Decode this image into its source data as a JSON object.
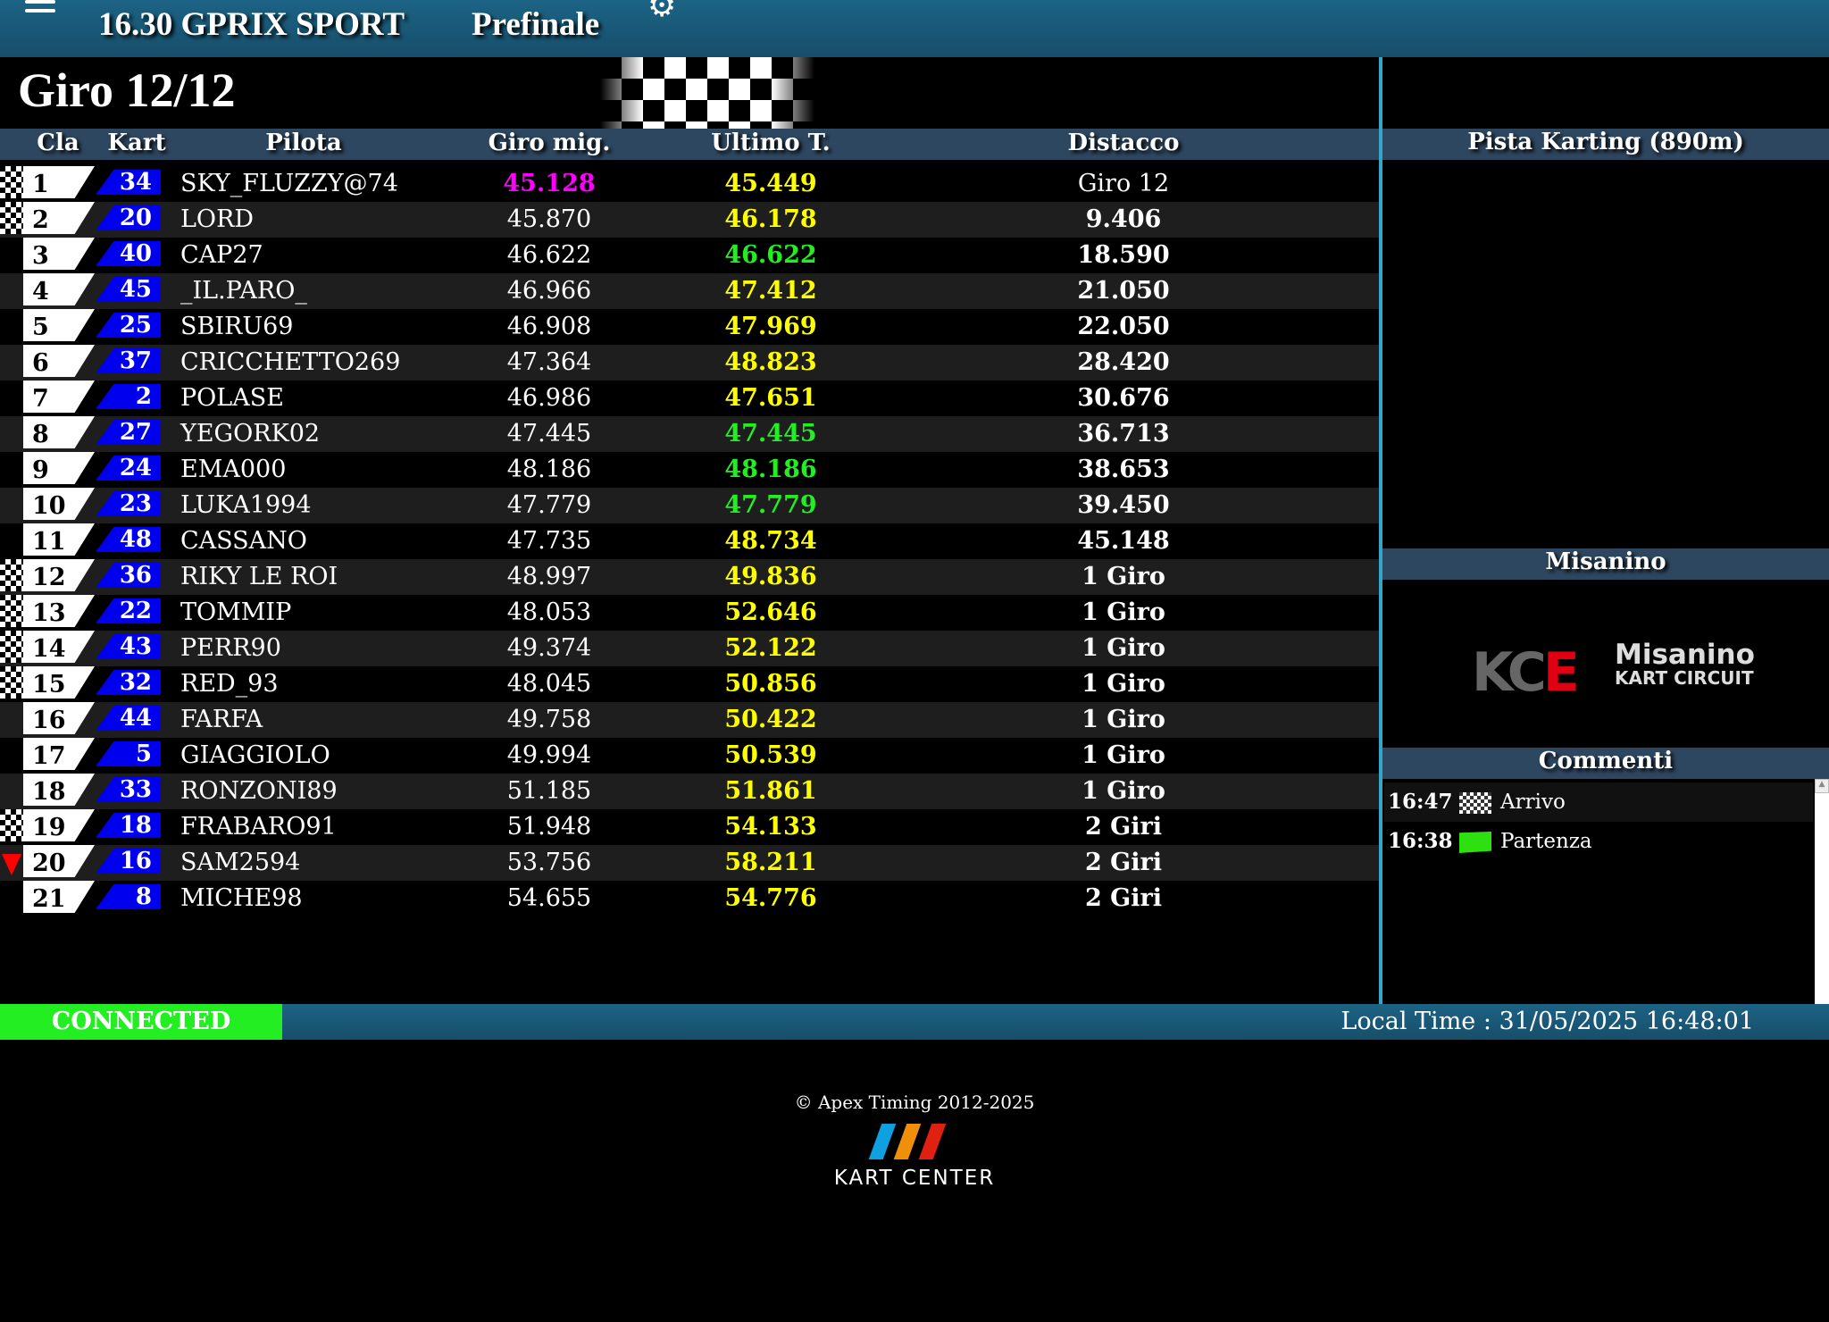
{
  "header": {
    "title": "16.30 GPRIX SPORT",
    "session": "Prefinale"
  },
  "lap": "Giro 12/12",
  "columns": {
    "cla": "Cla",
    "kart": "Kart",
    "pilota": "Pilota",
    "best": "Giro mig.",
    "last": "Ultimo T.",
    "gap": "Distacco"
  },
  "colors": {
    "magenta": "#ff00ff",
    "yellow": "#ffff00",
    "green": "#22ee22",
    "white": "#ffffff",
    "connected": "#22ee22",
    "kart_blue": "#0000ee"
  },
  "rows": [
    {
      "pos": "1",
      "kart": "34",
      "name": "SKY_FLUZZY@74",
      "best": "45.128",
      "last": "45.449",
      "gap": "Giro 12",
      "best_color": "magenta",
      "last_color": "yellow",
      "marker": "checkered",
      "gap_bold": false
    },
    {
      "pos": "2",
      "kart": "20",
      "name": "LORD",
      "best": "45.870",
      "last": "46.178",
      "gap": "9.406",
      "best_color": "white",
      "last_color": "yellow",
      "marker": "checkered"
    },
    {
      "pos": "3",
      "kart": "40",
      "name": "CAP27",
      "best": "46.622",
      "last": "46.622",
      "gap": "18.590",
      "best_color": "white",
      "last_color": "green",
      "marker": ""
    },
    {
      "pos": "4",
      "kart": "45",
      "name": "_IL.PARO_",
      "best": "46.966",
      "last": "47.412",
      "gap": "21.050",
      "best_color": "white",
      "last_color": "yellow",
      "marker": ""
    },
    {
      "pos": "5",
      "kart": "25",
      "name": "SBIRU69",
      "best": "46.908",
      "last": "47.969",
      "gap": "22.050",
      "best_color": "white",
      "last_color": "yellow",
      "marker": ""
    },
    {
      "pos": "6",
      "kart": "37",
      "name": "CRICCHETTO269",
      "best": "47.364",
      "last": "48.823",
      "gap": "28.420",
      "best_color": "white",
      "last_color": "yellow",
      "marker": ""
    },
    {
      "pos": "7",
      "kart": "2",
      "name": "POLASE",
      "best": "46.986",
      "last": "47.651",
      "gap": "30.676",
      "best_color": "white",
      "last_color": "yellow",
      "marker": ""
    },
    {
      "pos": "8",
      "kart": "27",
      "name": "YEGORK02",
      "best": "47.445",
      "last": "47.445",
      "gap": "36.713",
      "best_color": "white",
      "last_color": "green",
      "marker": ""
    },
    {
      "pos": "9",
      "kart": "24",
      "name": "EMA000",
      "best": "48.186",
      "last": "48.186",
      "gap": "38.653",
      "best_color": "white",
      "last_color": "green",
      "marker": ""
    },
    {
      "pos": "10",
      "kart": "23",
      "name": "LUKA1994",
      "best": "47.779",
      "last": "47.779",
      "gap": "39.450",
      "best_color": "white",
      "last_color": "green",
      "marker": ""
    },
    {
      "pos": "11",
      "kart": "48",
      "name": "CASSANO",
      "best": "47.735",
      "last": "48.734",
      "gap": "45.148",
      "best_color": "white",
      "last_color": "yellow",
      "marker": ""
    },
    {
      "pos": "12",
      "kart": "36",
      "name": "RIKY LE ROI",
      "best": "48.997",
      "last": "49.836",
      "gap": "1 Giro",
      "best_color": "white",
      "last_color": "yellow",
      "marker": "checkered"
    },
    {
      "pos": "13",
      "kart": "22",
      "name": "TOMMIP",
      "best": "48.053",
      "last": "52.646",
      "gap": "1 Giro",
      "best_color": "white",
      "last_color": "yellow",
      "marker": "checkered"
    },
    {
      "pos": "14",
      "kart": "43",
      "name": "PERR90",
      "best": "49.374",
      "last": "52.122",
      "gap": "1 Giro",
      "best_color": "white",
      "last_color": "yellow",
      "marker": "checkered"
    },
    {
      "pos": "15",
      "kart": "32",
      "name": "RED_93",
      "best": "48.045",
      "last": "50.856",
      "gap": "1 Giro",
      "best_color": "white",
      "last_color": "yellow",
      "marker": "checkered"
    },
    {
      "pos": "16",
      "kart": "44",
      "name": "FARFA",
      "best": "49.758",
      "last": "50.422",
      "gap": "1 Giro",
      "best_color": "white",
      "last_color": "yellow",
      "marker": ""
    },
    {
      "pos": "17",
      "kart": "5",
      "name": "GIAGGIOLO",
      "best": "49.994",
      "last": "50.539",
      "gap": "1 Giro",
      "best_color": "white",
      "last_color": "yellow",
      "marker": ""
    },
    {
      "pos": "18",
      "kart": "33",
      "name": "RONZONI89",
      "best": "51.185",
      "last": "51.861",
      "gap": "1 Giro",
      "best_color": "white",
      "last_color": "yellow",
      "marker": ""
    },
    {
      "pos": "19",
      "kart": "18",
      "name": "FRABARO91",
      "best": "51.948",
      "last": "54.133",
      "gap": "2 Giri",
      "best_color": "white",
      "last_color": "yellow",
      "marker": "checkered"
    },
    {
      "pos": "20",
      "kart": "16",
      "name": "SAM2594",
      "best": "53.756",
      "last": "58.211",
      "gap": "2 Giri",
      "best_color": "white",
      "last_color": "yellow",
      "marker": "position-down"
    },
    {
      "pos": "21",
      "kart": "8",
      "name": "MICHE98",
      "best": "54.655",
      "last": "54.776",
      "gap": "2 Giri",
      "best_color": "white",
      "last_color": "yellow",
      "marker": ""
    }
  ],
  "panels": {
    "track": "Pista Karting (890m)",
    "circuit": "Misanino",
    "comments": "Commenti"
  },
  "circuit_logo": {
    "letters": "KCE",
    "line1": "Misanino",
    "line2": "KART CIRCUIT"
  },
  "comments": [
    {
      "time": "16:47",
      "icon": "checkered-flag-icon",
      "text": "Arrivo"
    },
    {
      "time": "16:38",
      "icon": "green-flag-icon",
      "text": "Partenza"
    }
  ],
  "status": {
    "connection": "CONNECTED",
    "local_time": "Local Time : 31/05/2025 16:48:01"
  },
  "footer": {
    "copyright": "© Apex Timing 2012-2025",
    "brand": "KART CENTER"
  }
}
